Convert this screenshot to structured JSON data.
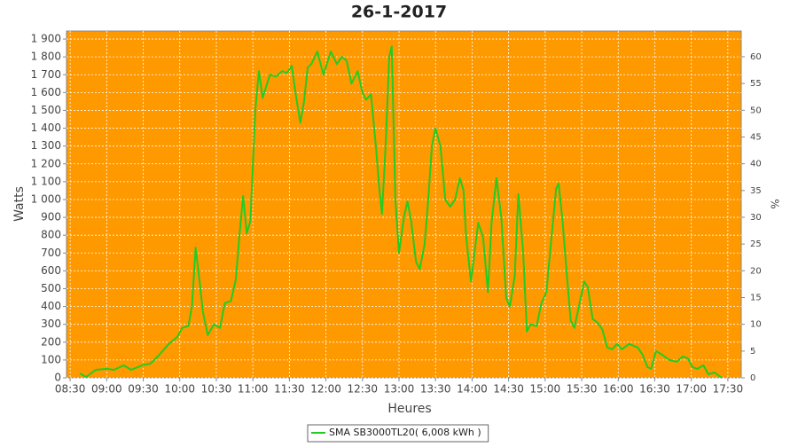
{
  "chart_data": {
    "type": "line",
    "title": "26-1-2017",
    "x_label": "Heures",
    "y_label": "Watts",
    "y2_label": "%",
    "xlim": [
      507,
      1061
    ],
    "xticks": [
      {
        "value": 510,
        "label": "08:30"
      },
      {
        "value": 540,
        "label": "09:00"
      },
      {
        "value": 570,
        "label": "09:30"
      },
      {
        "value": 600,
        "label": "10:00"
      },
      {
        "value": 630,
        "label": "10:30"
      },
      {
        "value": 660,
        "label": "11:00"
      },
      {
        "value": 690,
        "label": "11:30"
      },
      {
        "value": 720,
        "label": "12:00"
      },
      {
        "value": 750,
        "label": "12:30"
      },
      {
        "value": 780,
        "label": "13:00"
      },
      {
        "value": 810,
        "label": "13:30"
      },
      {
        "value": 840,
        "label": "14:00"
      },
      {
        "value": 870,
        "label": "14:30"
      },
      {
        "value": 900,
        "label": "15:00"
      },
      {
        "value": 930,
        "label": "15:30"
      },
      {
        "value": 960,
        "label": "16:00"
      },
      {
        "value": 990,
        "label": "16:30"
      },
      {
        "value": 1020,
        "label": "17:00"
      },
      {
        "value": 1050,
        "label": "17:30"
      }
    ],
    "ylim": [
      0,
      1945
    ],
    "yticks": [
      0,
      100,
      200,
      300,
      400,
      500,
      600,
      700,
      800,
      900,
      {
        "value": 1000,
        "label": "1 000"
      },
      {
        "value": 1100,
        "label": "1 100"
      },
      {
        "value": 1200,
        "label": "1 200"
      },
      {
        "value": 1300,
        "label": "1 300"
      },
      {
        "value": 1400,
        "label": "1 400"
      },
      {
        "value": 1500,
        "label": "1 500"
      },
      {
        "value": 1600,
        "label": "1 600"
      },
      {
        "value": 1700,
        "label": "1 700"
      },
      {
        "value": 1800,
        "label": "1 800"
      },
      {
        "value": 1900,
        "label": "1 900"
      }
    ],
    "y2lim": [
      0,
      64.8
    ],
    "y2ticks": [
      0,
      5,
      10,
      15,
      20,
      25,
      30,
      35,
      40,
      45,
      50,
      55,
      60
    ],
    "grid": true,
    "background": "#ff9900",
    "x": [
      518,
      523,
      531,
      540,
      546,
      554,
      560,
      569,
      576,
      582,
      591,
      598,
      602,
      607,
      610,
      613,
      616,
      619,
      623,
      628,
      633,
      637,
      642,
      646,
      649,
      652,
      655,
      658,
      662,
      665,
      668,
      674,
      679,
      684,
      688,
      692,
      695,
      699,
      702,
      705,
      708,
      713,
      716,
      718,
      724,
      729,
      733,
      737,
      741,
      746,
      750,
      753,
      757,
      761,
      764,
      766,
      769,
      772,
      774,
      777,
      780,
      784,
      787,
      790,
      794,
      797,
      801,
      804,
      807,
      810,
      814,
      818,
      822,
      826,
      830,
      833,
      835,
      839,
      842,
      845,
      849,
      853,
      856,
      860,
      864,
      868,
      871,
      875,
      878,
      882,
      885,
      888,
      893,
      897,
      901,
      904,
      909,
      911,
      914,
      918,
      921,
      924,
      928,
      932,
      935,
      939,
      943,
      947,
      951,
      955,
      959,
      963,
      969,
      976,
      980,
      984,
      987,
      991,
      996,
      1002,
      1008,
      1013,
      1017,
      1021,
      1025,
      1030,
      1034,
      1039,
      1045
    ],
    "series": [
      {
        "name": "SMA SB3000TL20( 6,008 kWh )",
        "color": "#22cc22",
        "values": [
          25,
          5,
          45,
          50,
          45,
          70,
          45,
          70,
          80,
          120,
          190,
          230,
          280,
          290,
          400,
          730,
          560,
          370,
          240,
          300,
          280,
          420,
          430,
          550,
          800,
          1020,
          810,
          880,
          1500,
          1720,
          1570,
          1700,
          1690,
          1720,
          1710,
          1750,
          1600,
          1430,
          1550,
          1740,
          1760,
          1830,
          1750,
          1700,
          1830,
          1760,
          1800,
          1780,
          1650,
          1720,
          1600,
          1560,
          1590,
          1300,
          1050,
          920,
          1300,
          1800,
          1860,
          1000,
          700,
          900,
          990,
          880,
          650,
          610,
          750,
          1000,
          1300,
          1400,
          1300,
          1000,
          960,
          1000,
          1120,
          1050,
          800,
          540,
          700,
          870,
          790,
          480,
          870,
          1120,
          900,
          450,
          400,
          570,
          1030,
          700,
          260,
          300,
          290,
          420,
          480,
          700,
          1060,
          1090,
          900,
          560,
          320,
          280,
          410,
          540,
          510,
          330,
          310,
          270,
          170,
          160,
          190,
          160,
          190,
          170,
          130,
          60,
          50,
          150,
          130,
          100,
          90,
          120,
          110,
          60,
          50,
          70,
          20,
          30,
          0
        ]
      }
    ]
  }
}
